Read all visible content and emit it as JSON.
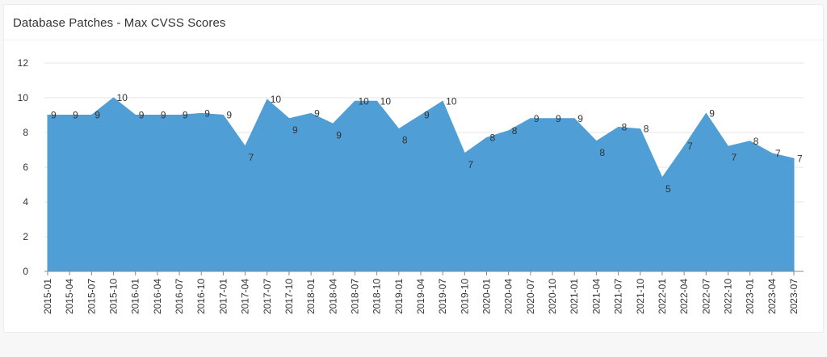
{
  "card": {
    "title": "Database Patches - Max CVSS Scores"
  },
  "colors": {
    "area": "#509ed6",
    "grid": "#e6e6e6",
    "axis": "#888888"
  },
  "chart_data": {
    "type": "area",
    "title": "",
    "xlabel": "",
    "ylabel": "",
    "ylim": [
      0,
      12
    ],
    "yticks": [
      0,
      2,
      4,
      6,
      8,
      10,
      12
    ],
    "grid": true,
    "categories": [
      "2015-01",
      "2015-04",
      "2015-07",
      "2015-10",
      "2016-01",
      "2016-04",
      "2016-07",
      "2016-10",
      "2017-01",
      "2017-04",
      "2017-07",
      "2017-10",
      "2018-01",
      "2018-04",
      "2018-07",
      "2018-10",
      "2019-01",
      "2019-04",
      "2019-07",
      "2019-10",
      "2020-01",
      "2020-04",
      "2020-07",
      "2020-10",
      "2021-01",
      "2021-04",
      "2021-07",
      "2021-10",
      "2022-01",
      "2022-04",
      "2022-07",
      "2022-10",
      "2023-01",
      "2023-04",
      "2023-07"
    ],
    "values": [
      9.0,
      9.0,
      9.0,
      10.0,
      9.0,
      9.0,
      9.0,
      9.1,
      9.0,
      7.2,
      9.9,
      8.8,
      9.1,
      8.5,
      9.8,
      9.8,
      8.2,
      9.0,
      9.8,
      6.8,
      7.7,
      8.1,
      8.8,
      8.8,
      8.8,
      7.5,
      8.3,
      8.2,
      5.4,
      7.2,
      9.1,
      7.2,
      7.5,
      6.8,
      6.5
    ],
    "labels": [
      "9",
      "9",
      "9",
      "10",
      "9",
      "9",
      "9",
      "9",
      "9",
      "7",
      "10",
      "9",
      "9",
      "9",
      "10",
      "10",
      "8",
      "9",
      "10",
      "7",
      "8",
      "8",
      "9",
      "9",
      "9",
      "8",
      "8",
      "8",
      "5",
      "7",
      "9",
      "7",
      "8",
      "7",
      "7"
    ]
  }
}
